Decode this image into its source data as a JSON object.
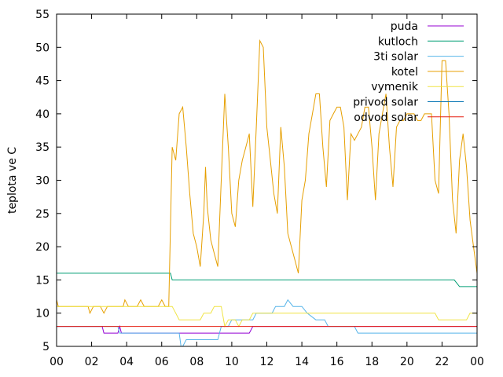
{
  "chart_data": {
    "type": "line",
    "title": "",
    "xlabel": "",
    "ylabel": "teplota ve C",
    "xlim": [
      0,
      24
    ],
    "ylim": [
      5,
      55
    ],
    "x_ticks": [
      "00",
      "02",
      "04",
      "06",
      "08",
      "10",
      "12",
      "14",
      "16",
      "18",
      "20",
      "22",
      "00"
    ],
    "y_ticks": [
      5,
      10,
      15,
      20,
      25,
      30,
      35,
      40,
      45,
      50,
      55
    ],
    "legend_position": "top-right",
    "grid": false,
    "series": [
      {
        "name": "puda",
        "color": "#9400d3",
        "points": [
          [
            0,
            8
          ],
          [
            2.6,
            8
          ],
          [
            2.7,
            7
          ],
          [
            3.5,
            7
          ],
          [
            3.6,
            8
          ],
          [
            3.7,
            7
          ],
          [
            11,
            7
          ],
          [
            11.2,
            8
          ],
          [
            11.5,
            8
          ],
          [
            11.6,
            8
          ],
          [
            12.1,
            8
          ],
          [
            12.2,
            8
          ],
          [
            24,
            8
          ]
        ]
      },
      {
        "name": "kutloch",
        "color": "#009e73",
        "points": [
          [
            0,
            16
          ],
          [
            6.5,
            16
          ],
          [
            6.6,
            15
          ],
          [
            21.6,
            15
          ],
          [
            21.7,
            15
          ],
          [
            22.7,
            15
          ],
          [
            23,
            14
          ],
          [
            24,
            14
          ]
        ]
      },
      {
        "name": "3ti solar",
        "color": "#56b4e9",
        "points": [
          [
            0,
            8
          ],
          [
            3.5,
            8
          ],
          [
            3.6,
            7
          ],
          [
            7,
            7
          ],
          [
            7.1,
            5
          ],
          [
            7.2,
            5
          ],
          [
            7.4,
            6
          ],
          [
            8.2,
            6
          ],
          [
            9.2,
            6
          ],
          [
            9.3,
            7
          ],
          [
            9.4,
            8
          ],
          [
            9.8,
            8
          ],
          [
            10,
            9
          ],
          [
            11.2,
            9
          ],
          [
            11.4,
            10
          ],
          [
            12.3,
            10
          ],
          [
            12.5,
            11
          ],
          [
            13,
            11
          ],
          [
            13.2,
            12
          ],
          [
            13.5,
            11
          ],
          [
            14,
            11
          ],
          [
            14.3,
            10
          ],
          [
            14.8,
            9
          ],
          [
            15.3,
            9
          ],
          [
            15.5,
            8
          ],
          [
            17,
            8
          ],
          [
            17.2,
            7
          ],
          [
            24,
            7
          ]
        ]
      },
      {
        "name": "kotel",
        "color": "#e69f00",
        "points": [
          [
            0,
            12
          ],
          [
            0.1,
            11
          ],
          [
            1.8,
            11
          ],
          [
            1.9,
            10
          ],
          [
            2.1,
            11
          ],
          [
            2.5,
            11
          ],
          [
            2.7,
            10
          ],
          [
            2.9,
            11
          ],
          [
            3.8,
            11
          ],
          [
            3.9,
            12
          ],
          [
            4.1,
            11
          ],
          [
            4.6,
            11
          ],
          [
            4.8,
            12
          ],
          [
            5,
            11
          ],
          [
            5.8,
            11
          ],
          [
            6,
            12
          ],
          [
            6.2,
            11
          ],
          [
            6.4,
            11
          ],
          [
            6.6,
            35
          ],
          [
            6.8,
            33
          ],
          [
            7,
            40
          ],
          [
            7.2,
            41
          ],
          [
            7.4,
            35
          ],
          [
            7.6,
            28
          ],
          [
            7.8,
            22
          ],
          [
            8,
            20
          ],
          [
            8.2,
            17
          ],
          [
            8.4,
            25
          ],
          [
            8.5,
            32
          ],
          [
            8.6,
            26
          ],
          [
            8.8,
            21
          ],
          [
            9,
            19
          ],
          [
            9.2,
            17
          ],
          [
            9.4,
            30
          ],
          [
            9.6,
            43
          ],
          [
            9.8,
            35
          ],
          [
            10,
            25
          ],
          [
            10.2,
            23
          ],
          [
            10.4,
            30
          ],
          [
            10.6,
            33
          ],
          [
            10.8,
            35
          ],
          [
            11,
            37
          ],
          [
            11.2,
            26
          ],
          [
            11.4,
            38
          ],
          [
            11.6,
            51
          ],
          [
            11.8,
            50
          ],
          [
            12,
            38
          ],
          [
            12.2,
            33
          ],
          [
            12.4,
            28
          ],
          [
            12.6,
            25
          ],
          [
            12.8,
            38
          ],
          [
            13,
            32
          ],
          [
            13.2,
            22
          ],
          [
            13.4,
            20
          ],
          [
            13.6,
            18
          ],
          [
            13.8,
            16
          ],
          [
            14,
            27
          ],
          [
            14.2,
            30
          ],
          [
            14.4,
            37
          ],
          [
            14.6,
            40
          ],
          [
            14.8,
            43
          ],
          [
            15,
            43
          ],
          [
            15.2,
            35
          ],
          [
            15.4,
            29
          ],
          [
            15.6,
            39
          ],
          [
            15.8,
            40
          ],
          [
            16,
            41
          ],
          [
            16.2,
            41
          ],
          [
            16.4,
            38
          ],
          [
            16.6,
            27
          ],
          [
            16.8,
            37
          ],
          [
            17,
            36
          ],
          [
            17.2,
            37
          ],
          [
            17.4,
            38
          ],
          [
            17.6,
            41
          ],
          [
            17.8,
            41
          ],
          [
            18,
            35
          ],
          [
            18.2,
            27
          ],
          [
            18.4,
            37
          ],
          [
            18.6,
            40
          ],
          [
            18.8,
            43
          ],
          [
            19,
            35
          ],
          [
            19.2,
            29
          ],
          [
            19.4,
            38
          ],
          [
            19.6,
            39
          ],
          [
            19.8,
            39
          ],
          [
            20,
            40
          ],
          [
            20.4,
            40
          ],
          [
            20.6,
            39
          ],
          [
            20.8,
            39
          ],
          [
            21,
            40
          ],
          [
            21.4,
            40
          ],
          [
            21.6,
            30
          ],
          [
            21.8,
            28
          ],
          [
            22,
            48
          ],
          [
            22.2,
            48
          ],
          [
            22.4,
            40
          ],
          [
            22.6,
            27
          ],
          [
            22.8,
            22
          ],
          [
            23,
            33
          ],
          [
            23.2,
            37
          ],
          [
            23.4,
            32
          ],
          [
            23.6,
            24
          ],
          [
            23.8,
            20
          ],
          [
            24,
            16
          ]
        ]
      },
      {
        "name": "vymenik",
        "color": "#f0e442",
        "points": [
          [
            0,
            11
          ],
          [
            6.6,
            11
          ],
          [
            6.8,
            10
          ],
          [
            7,
            9
          ],
          [
            8.2,
            9
          ],
          [
            8.4,
            10
          ],
          [
            8.8,
            10
          ],
          [
            9,
            11
          ],
          [
            9.4,
            11
          ],
          [
            9.6,
            8
          ],
          [
            9.8,
            9
          ],
          [
            10.2,
            9
          ],
          [
            10.4,
            8
          ],
          [
            10.6,
            9
          ],
          [
            11,
            9
          ],
          [
            11.2,
            10
          ],
          [
            12,
            10
          ],
          [
            12.2,
            10
          ],
          [
            21.6,
            10
          ],
          [
            21.8,
            9
          ],
          [
            23.4,
            9
          ],
          [
            23.6,
            10
          ],
          [
            24,
            10
          ]
        ]
      },
      {
        "name": "privod solar",
        "color": "#0072b2",
        "points": []
      },
      {
        "name": "odvod solar",
        "color": "#e51e10",
        "points": [
          [
            0,
            8
          ],
          [
            24,
            8
          ]
        ]
      }
    ]
  }
}
